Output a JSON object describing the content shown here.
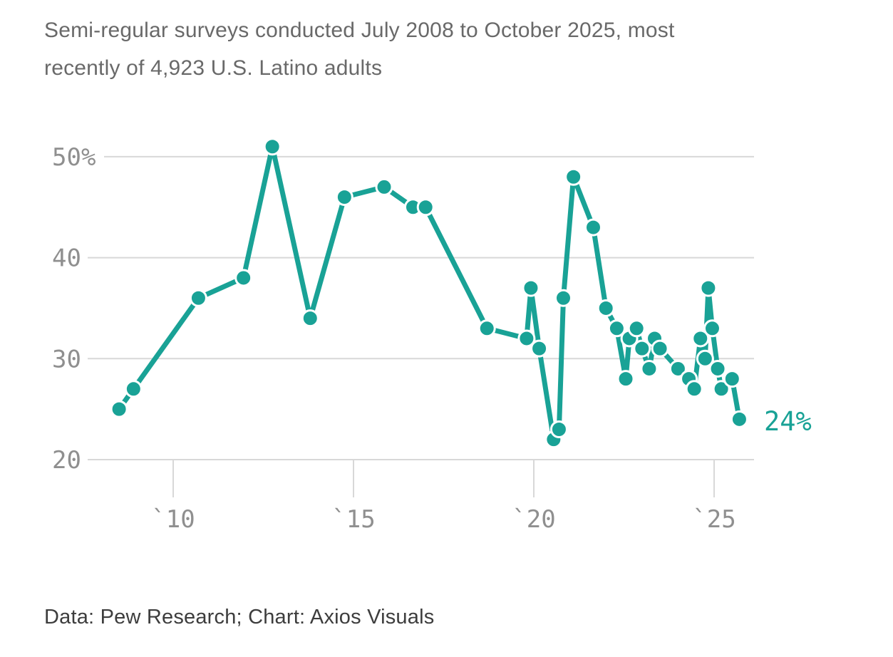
{
  "header": {
    "subtitle_line1": "Semi-regular surveys conducted July 2008 to October 2025, most",
    "subtitle_line2": "recently of 4,923 U.S. Latino adults"
  },
  "footer": {
    "credit": "Data: Pew Research; Chart: Axios Visuals"
  },
  "colors": {
    "line": "#19a296",
    "grid": "#d8d8d8",
    "axis_text": "#8f8f8f",
    "subtitle_text": "#696969",
    "footer_text": "#3d3d3d"
  },
  "chart_data": {
    "type": "line",
    "title": "",
    "series": [
      {
        "name": "U.S. Latino adults (%)",
        "x": [
          2008.5,
          2008.9,
          2010.7,
          2011.95,
          2012.75,
          2013.8,
          2014.75,
          2015.85,
          2016.65,
          2017.0,
          2018.7,
          2019.8,
          2019.92,
          2020.15,
          2020.55,
          2020.7,
          2020.82,
          2021.1,
          2021.65,
          2022.0,
          2022.3,
          2022.55,
          2022.65,
          2022.85,
          2023.0,
          2023.2,
          2023.35,
          2023.5,
          2024.0,
          2024.3,
          2024.45,
          2024.62,
          2024.75,
          2024.84,
          2024.95,
          2025.1,
          2025.2,
          2025.5,
          2025.7
        ],
        "values": [
          25,
          27,
          36,
          38,
          51,
          34,
          46,
          47,
          45,
          45,
          33,
          32,
          37,
          31,
          22,
          23,
          36,
          48,
          43,
          35,
          33,
          28,
          32,
          33,
          31,
          29,
          32,
          31,
          29,
          28,
          27,
          32,
          30,
          37,
          33,
          29,
          27,
          28,
          24
        ]
      }
    ],
    "end_label": "24%",
    "y_ticks": [
      {
        "value": 50,
        "label": "50%"
      },
      {
        "value": 40,
        "label": "40"
      },
      {
        "value": 30,
        "label": "30"
      },
      {
        "value": 20,
        "label": "20"
      }
    ],
    "x_ticks": [
      {
        "value": 2010,
        "label": "`10"
      },
      {
        "value": 2015,
        "label": "`15"
      },
      {
        "value": 2020,
        "label": "`20"
      },
      {
        "value": 2025,
        "label": "`25"
      }
    ],
    "xlim": [
      2008.2,
      2026.1
    ],
    "ylim": [
      20,
      52
    ],
    "grid": true,
    "legend": "none"
  }
}
